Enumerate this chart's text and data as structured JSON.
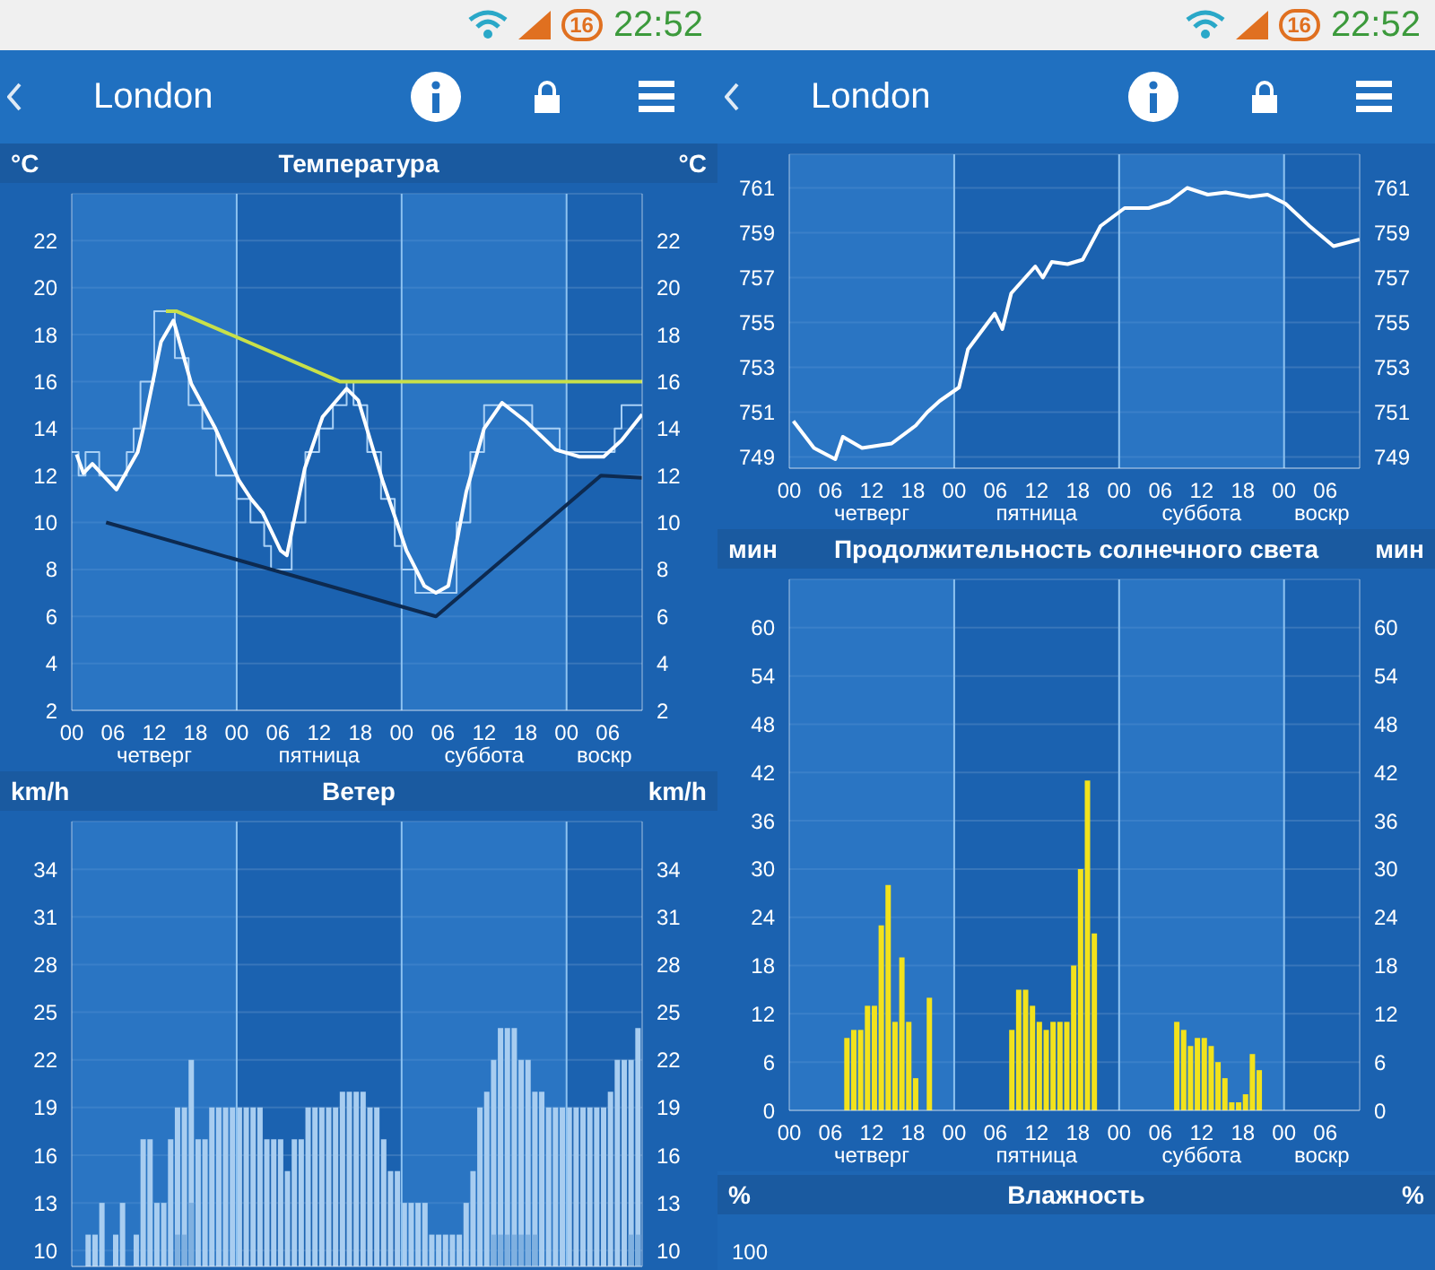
{
  "chart_data": [
    {
      "type": "other",
      "annotations": [
        "16",
        "22:52",
        "London"
      ]
    },
    {
      "type": "line",
      "title": "Температура",
      "ylabel": "°C",
      "y2label": "°C",
      "xlim": [
        0,
        83
      ],
      "xticks": [
        {
          "value": 0,
          "label": "00"
        },
        {
          "value": 6,
          "label": "06"
        },
        {
          "value": 12,
          "label": "12"
        },
        {
          "value": 18,
          "label": "18"
        },
        {
          "value": 24,
          "label": "00"
        },
        {
          "value": 30,
          "label": "06"
        },
        {
          "value": 36,
          "label": "12"
        },
        {
          "value": 42,
          "label": "18"
        },
        {
          "value": 48,
          "label": "00"
        },
        {
          "value": 54,
          "label": "06"
        },
        {
          "value": 60,
          "label": "12"
        },
        {
          "value": 66,
          "label": "18"
        },
        {
          "value": 72,
          "label": "00"
        },
        {
          "value": 78,
          "label": "06"
        }
      ],
      "annotations": [
        "четверг",
        "пятница",
        "суббота",
        "воскр"
      ],
      "ylim": [
        2,
        24
      ],
      "yticks": [
        2,
        4,
        6,
        8,
        10,
        12,
        14,
        16,
        18,
        20,
        22
      ],
      "y2lim": [
        2,
        24
      ],
      "y2ticks": [
        2,
        4,
        6,
        8,
        10,
        12,
        14,
        16,
        18,
        20,
        22
      ],
      "grid": "y",
      "bands": [
        {
          "axis": "x",
          "from": 0,
          "to": 24,
          "color": "#3d8fdc"
        },
        {
          "axis": "x",
          "from": 48,
          "to": 72,
          "color": "#3d8fdc"
        }
      ],
      "ref_lines": [
        {
          "axis": "x",
          "value": 24,
          "color": "#8ec3f0"
        },
        {
          "axis": "x",
          "value": 48,
          "color": "#8ec3f0"
        },
        {
          "axis": "x",
          "value": 72,
          "color": "#8ec3f0"
        }
      ],
      "series": [
        {
          "type": "step",
          "color": "#a9d0f5",
          "x": [
            0,
            1,
            2,
            4,
            8,
            9,
            10,
            12,
            14,
            15,
            17,
            19,
            21,
            24,
            26,
            28,
            29,
            31,
            32,
            34,
            36,
            38,
            40,
            41,
            43,
            45,
            47,
            48,
            50,
            55,
            56,
            58,
            60,
            66,
            67,
            70,
            71,
            78,
            79,
            80,
            83
          ],
          "values": [
            13,
            12,
            13,
            12,
            13,
            14,
            16,
            19,
            19,
            17,
            15,
            14,
            12,
            11,
            10,
            9,
            8,
            8,
            10,
            13,
            14,
            15,
            16,
            15,
            13,
            11,
            9,
            8,
            7,
            7,
            10,
            13,
            15,
            15,
            14,
            14,
            13,
            13,
            14,
            15,
            15
          ]
        },
        {
          "color": "#ffffff",
          "x": [
            0.7,
            1.7,
            3,
            6.5,
            9.6,
            10.4,
            13,
            14.8,
            17.4,
            20.9,
            24.3,
            26.1,
            27.8,
            30.4,
            31.3,
            33.9,
            36.5,
            40,
            41.7,
            45.2,
            48.7,
            51.3,
            53,
            54.8,
            57.4,
            60,
            62.6,
            66.1,
            70.4,
            73.9,
            77.4,
            80,
            83
          ],
          "values": [
            12.9,
            12.1,
            12.5,
            11.4,
            13,
            14,
            17.7,
            18.6,
            15.9,
            14,
            11.8,
            11,
            10.4,
            8.8,
            8.6,
            12.3,
            14.5,
            15.7,
            15.2,
            11.8,
            8.8,
            7.3,
            7,
            7.3,
            11.3,
            14,
            15.1,
            14.3,
            13.1,
            12.8,
            12.8,
            13.5,
            14.6
          ]
        },
        {
          "color": "#c8e04a",
          "x": [
            13.7,
            15.2,
            39,
            83
          ],
          "values": [
            19,
            19,
            16,
            16
          ]
        },
        {
          "color": "#0d2a50",
          "x": [
            5,
            53,
            77,
            83
          ],
          "values": [
            10,
            6,
            12,
            11.9
          ]
        }
      ]
    },
    {
      "type": "bar",
      "title": "Ветер",
      "ylabel": "km/h",
      "y2label": "km/h",
      "tick_labels": "y",
      "xlim": [
        0,
        83
      ],
      "ylim": [
        9,
        37
      ],
      "yticks": [
        10,
        13,
        16,
        19,
        22,
        25,
        28,
        31,
        34
      ],
      "y2lim": [
        9,
        37
      ],
      "y2ticks": [
        10,
        13,
        16,
        19,
        22,
        25,
        28,
        31,
        34
      ],
      "grid": "y",
      "bands": [
        {
          "axis": "x",
          "from": 0,
          "to": 24,
          "color": "#3d8fdc"
        },
        {
          "axis": "x",
          "from": 48,
          "to": 72,
          "color": "#3d8fdc"
        }
      ],
      "ref_lines": [
        {
          "axis": "x",
          "value": 24,
          "color": "#8ec3f0"
        },
        {
          "axis": "x",
          "value": 48,
          "color": "#8ec3f0"
        },
        {
          "axis": "x",
          "value": 72,
          "color": "#8ec3f0"
        }
      ],
      "series": [
        {
          "color": "#a8cdf0",
          "x": [
            2.5,
            3.5,
            4.5,
            5.5,
            6.5,
            7.5,
            8.5,
            9.5,
            10.5,
            11.5,
            12.5,
            13.5,
            14.5,
            15.5,
            16.5,
            17.5,
            18.5,
            19.5,
            20.5,
            21.5,
            22.5,
            23.5,
            24.5,
            25.5,
            26.5,
            27.5,
            28.5,
            29.5,
            30.5,
            31.5,
            32.5,
            33.5,
            34.5,
            35.5,
            36.5,
            37.5,
            38.5,
            39.5,
            40.5,
            41.5,
            42.5,
            43.5,
            44.5,
            45.5,
            46.5,
            47.5,
            48.5,
            49.5,
            50.5,
            51.5,
            52.5,
            53.5,
            54.5,
            55.5,
            56.5,
            57.5,
            58.5,
            59.5,
            60.5,
            61.5,
            62.5,
            63.5,
            64.5,
            65.5,
            66.5,
            67.5,
            68.5,
            69.5,
            70.5,
            71.5,
            72.5,
            73.5,
            74.5,
            75.5,
            76.5,
            77.5,
            78.5,
            79.5,
            80.5,
            81.5,
            82.5
          ],
          "values": [
            11,
            11,
            13,
            null,
            11,
            13,
            null,
            11,
            17,
            17,
            13,
            13,
            17,
            19,
            19,
            22,
            17,
            17,
            19,
            19,
            19,
            19,
            19,
            19,
            19,
            19,
            17,
            17,
            17,
            15,
            17,
            17,
            19,
            19,
            19,
            19,
            19,
            20,
            20,
            20,
            20,
            19,
            19,
            17,
            15,
            15,
            13,
            13,
            13,
            13,
            11,
            11,
            11,
            11,
            11,
            13,
            15,
            19,
            20,
            22,
            24,
            24,
            24,
            22,
            22,
            20,
            20,
            19,
            19,
            19,
            19,
            19,
            19,
            19,
            19,
            19,
            20,
            22,
            22,
            22,
            24
          ]
        },
        {
          "color": "#7fb0e0",
          "x": [
            15.5,
            16.5,
            17.5,
            61.5,
            62.5,
            63.5,
            64.5,
            65.5,
            66.5,
            67.5,
            81.5,
            82.5
          ],
          "values": [
            11,
            11,
            13,
            11,
            11,
            11,
            11,
            11,
            11,
            11,
            11,
            11
          ]
        }
      ]
    },
    {
      "type": "other",
      "annotations": [
        "16",
        "22:52",
        "London"
      ]
    },
    {
      "type": "line",
      "xlim": [
        0,
        83
      ],
      "xticks": [
        {
          "value": 0,
          "label": "00"
        },
        {
          "value": 6,
          "label": "06"
        },
        {
          "value": 12,
          "label": "12"
        },
        {
          "value": 18,
          "label": "18"
        },
        {
          "value": 24,
          "label": "00"
        },
        {
          "value": 30,
          "label": "06"
        },
        {
          "value": 36,
          "label": "12"
        },
        {
          "value": 42,
          "label": "18"
        },
        {
          "value": 48,
          "label": "00"
        },
        {
          "value": 54,
          "label": "06"
        },
        {
          "value": 60,
          "label": "12"
        },
        {
          "value": 66,
          "label": "18"
        },
        {
          "value": 72,
          "label": "00"
        },
        {
          "value": 78,
          "label": "06"
        }
      ],
      "annotations": [
        "четверг",
        "пятница",
        "суббота",
        "воскр"
      ],
      "ylim": [
        748.5,
        762.5
      ],
      "yticks": [
        749,
        751,
        753,
        755,
        757,
        759,
        761
      ],
      "y2lim": [
        748.5,
        762.5
      ],
      "y2ticks": [
        749,
        751,
        753,
        755,
        757,
        759,
        761
      ],
      "grid": "y",
      "bands": [
        {
          "axis": "x",
          "from": 0,
          "to": 24,
          "color": "#3d8fdc"
        },
        {
          "axis": "x",
          "from": 48,
          "to": 72,
          "color": "#3d8fdc"
        }
      ],
      "ref_lines": [
        {
          "axis": "x",
          "value": 24,
          "color": "#8ec3f0"
        },
        {
          "axis": "x",
          "value": 48,
          "color": "#8ec3f0"
        },
        {
          "axis": "x",
          "value": 72,
          "color": "#8ec3f0"
        }
      ],
      "series": [
        {
          "color": "#ffffff",
          "x": [
            0.6,
            3.6,
            6.7,
            7.8,
            10.6,
            14.9,
            18.4,
            20.1,
            21.9,
            24.7,
            26,
            29.9,
            31,
            32.3,
            35.8,
            36.9,
            38.2,
            40.5,
            42.7,
            45.3,
            48.8,
            52.3,
            55.3,
            57.9,
            60.9,
            63.5,
            67,
            69.6,
            72.2,
            75.7,
            79.2,
            83
          ],
          "values": [
            750.6,
            749.4,
            748.9,
            749.9,
            749.4,
            749.6,
            750.4,
            751,
            751.5,
            752.1,
            753.8,
            755.4,
            754.7,
            756.3,
            757.5,
            757,
            757.7,
            757.6,
            757.8,
            759.3,
            760.1,
            760.1,
            760.4,
            761,
            760.7,
            760.8,
            760.6,
            760.7,
            760.3,
            759.3,
            758.4,
            758.7
          ]
        }
      ]
    },
    {
      "type": "bar",
      "title": "Продолжительность солнечного света",
      "ylabel": "мин",
      "y2label": "мин",
      "xlim": [
        0,
        83
      ],
      "xticks": [
        {
          "value": 0,
          "label": "00"
        },
        {
          "value": 6,
          "label": "06"
        },
        {
          "value": 12,
          "label": "12"
        },
        {
          "value": 18,
          "label": "18"
        },
        {
          "value": 24,
          "label": "00"
        },
        {
          "value": 30,
          "label": "06"
        },
        {
          "value": 36,
          "label": "12"
        },
        {
          "value": 42,
          "label": "18"
        },
        {
          "value": 48,
          "label": "00"
        },
        {
          "value": 54,
          "label": "06"
        },
        {
          "value": 60,
          "label": "12"
        },
        {
          "value": 66,
          "label": "18"
        },
        {
          "value": 72,
          "label": "00"
        },
        {
          "value": 78,
          "label": "06"
        }
      ],
      "annotations": [
        "четверг",
        "пятница",
        "суббота",
        "воскр"
      ],
      "ylim": [
        0,
        66
      ],
      "yticks": [
        0,
        6,
        12,
        18,
        24,
        30,
        36,
        42,
        48,
        54,
        60
      ],
      "y2lim": [
        0,
        66
      ],
      "y2ticks": [
        0,
        6,
        12,
        18,
        24,
        30,
        36,
        42,
        48,
        54,
        60
      ],
      "grid": "y",
      "bands": [
        {
          "axis": "x",
          "from": 0,
          "to": 24,
          "color": "#3d8fdc"
        },
        {
          "axis": "x",
          "from": 48,
          "to": 72,
          "color": "#3d8fdc"
        }
      ],
      "ref_lines": [
        {
          "axis": "x",
          "value": 24,
          "color": "#8ec3f0"
        },
        {
          "axis": "x",
          "value": 48,
          "color": "#8ec3f0"
        },
        {
          "axis": "x",
          "value": 72,
          "color": "#8ec3f0"
        }
      ],
      "series": [
        {
          "color": "#f2e21c",
          "x": [
            8.5,
            9.5,
            10.5,
            11.5,
            12.5,
            13.5,
            14.5,
            15.5,
            16.5,
            17.5,
            18.5,
            20.5,
            32.5,
            33.5,
            34.5,
            35.5,
            36.5,
            37.5,
            38.5,
            39.5,
            40.5,
            41.5,
            42.5,
            43.5,
            44.5,
            56.5,
            57.5,
            58.5,
            59.5,
            60.5,
            61.5,
            62.5,
            63.5,
            64.5,
            65.5,
            66.5,
            67.5,
            68.5
          ],
          "values": [
            9,
            10,
            10,
            13,
            13,
            23,
            28,
            11,
            19,
            11,
            4,
            14,
            10,
            15,
            15,
            13,
            11,
            10,
            11,
            11,
            11,
            18,
            30,
            41,
            22,
            11,
            10,
            8,
            9,
            9,
            8,
            6,
            4,
            1,
            1,
            2,
            7,
            5
          ]
        }
      ]
    },
    {
      "type": "other",
      "title": "Влажность",
      "ylabel": "%",
      "y2label": "%",
      "annotations": [
        "100"
      ]
    }
  ]
}
